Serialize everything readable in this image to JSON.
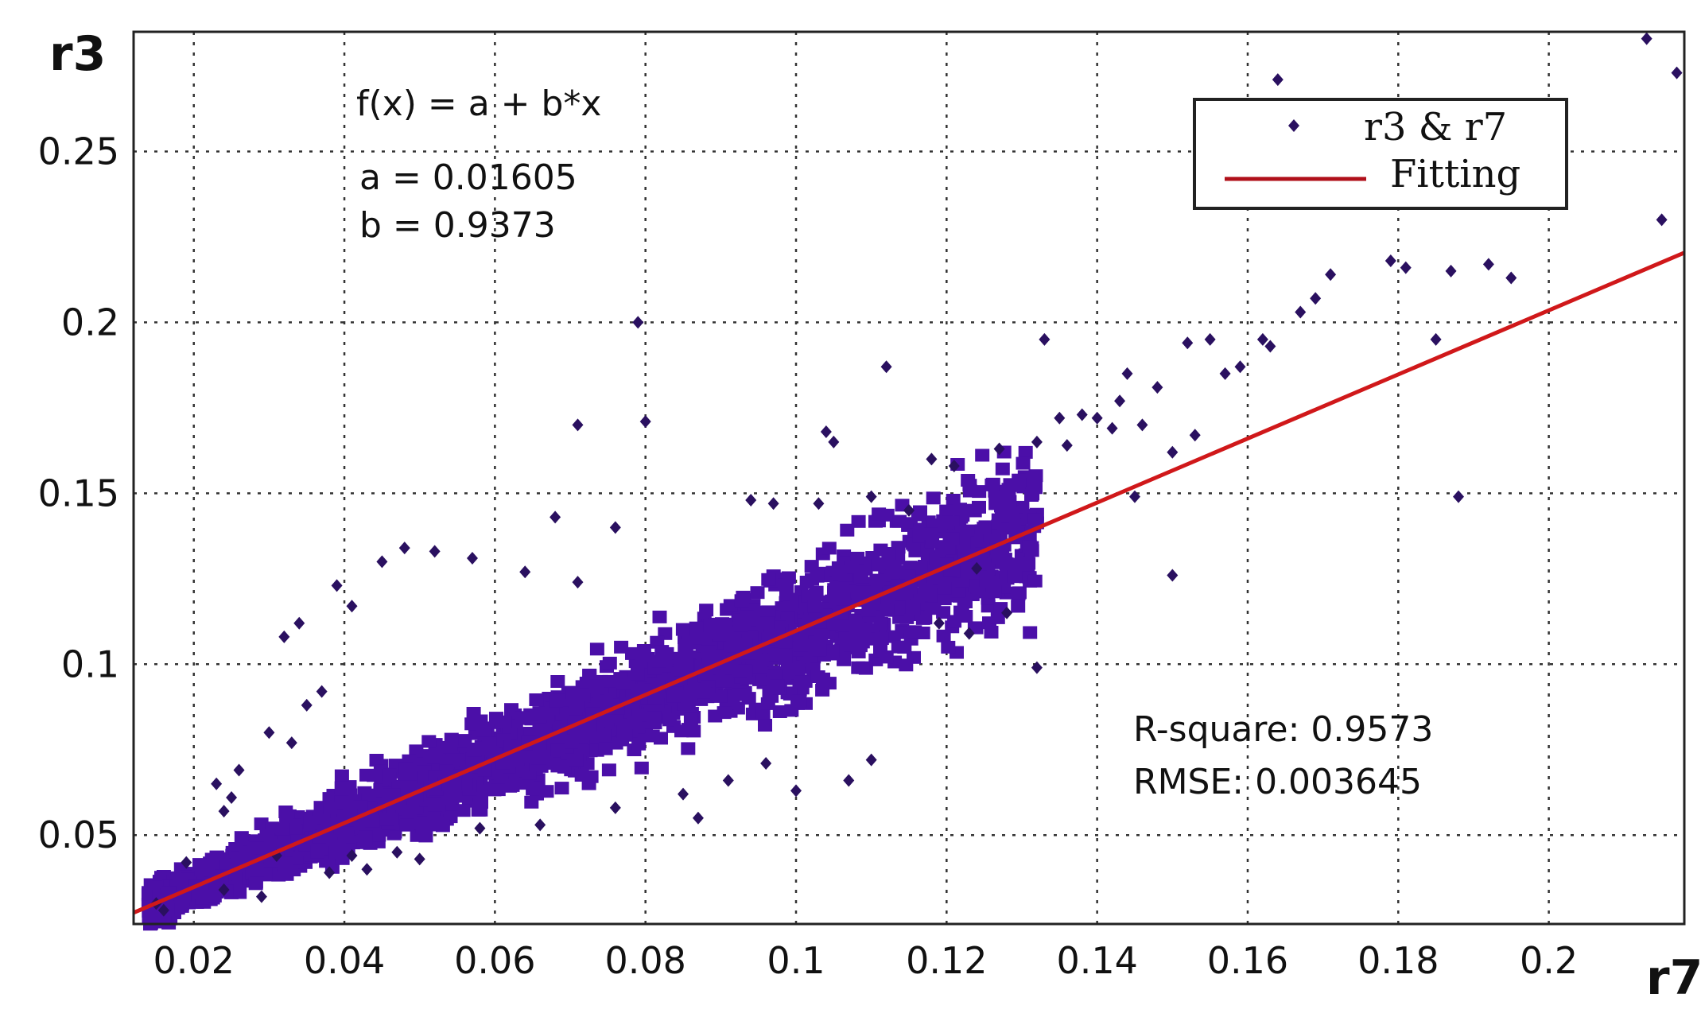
{
  "chart_data": {
    "type": "scatter",
    "xlabel": "r7",
    "ylabel": "r3",
    "xlim": [
      0.012,
      0.218
    ],
    "ylim": [
      0.024,
      0.285
    ],
    "xticks": [
      0.02,
      0.04,
      0.06,
      0.08,
      0.1,
      0.12,
      0.14,
      0.16,
      0.18,
      0.2
    ],
    "xtick_labels": [
      "0.02",
      "0.04",
      "0.06",
      "0.08",
      "0.1",
      "0.12",
      "0.14",
      "0.16",
      "0.18",
      "0.2"
    ],
    "yticks": [
      0.05,
      0.1,
      0.15,
      0.2,
      0.25
    ],
    "ytick_labels": [
      "0.05",
      "0.1",
      "0.15",
      "0.2",
      "0.25"
    ],
    "grid": true,
    "legend_position": "top-right",
    "series": [
      {
        "name": "r3 & r7",
        "kind": "scatter",
        "color": "#4b0fa8",
        "points": [
          [
            0.213,
            0.283
          ],
          [
            0.217,
            0.273
          ],
          [
            0.164,
            0.271
          ],
          [
            0.215,
            0.23
          ],
          [
            0.179,
            0.218
          ],
          [
            0.181,
            0.216
          ],
          [
            0.192,
            0.217
          ],
          [
            0.187,
            0.215
          ],
          [
            0.171,
            0.214
          ],
          [
            0.195,
            0.213
          ],
          [
            0.169,
            0.207
          ],
          [
            0.167,
            0.203
          ],
          [
            0.185,
            0.195
          ],
          [
            0.162,
            0.195
          ],
          [
            0.163,
            0.193
          ],
          [
            0.155,
            0.195
          ],
          [
            0.152,
            0.194
          ],
          [
            0.133,
            0.195
          ],
          [
            0.079,
            0.2
          ],
          [
            0.159,
            0.187
          ],
          [
            0.157,
            0.185
          ],
          [
            0.144,
            0.185
          ],
          [
            0.112,
            0.187
          ],
          [
            0.148,
            0.181
          ],
          [
            0.143,
            0.177
          ],
          [
            0.138,
            0.173
          ],
          [
            0.135,
            0.172
          ],
          [
            0.14,
            0.172
          ],
          [
            0.142,
            0.169
          ],
          [
            0.153,
            0.167
          ],
          [
            0.146,
            0.17
          ],
          [
            0.071,
            0.17
          ],
          [
            0.08,
            0.171
          ],
          [
            0.104,
            0.168
          ],
          [
            0.105,
            0.165
          ],
          [
            0.132,
            0.165
          ],
          [
            0.136,
            0.164
          ],
          [
            0.127,
            0.163
          ],
          [
            0.15,
            0.162
          ],
          [
            0.118,
            0.16
          ],
          [
            0.121,
            0.158
          ],
          [
            0.145,
            0.149
          ],
          [
            0.188,
            0.149
          ],
          [
            0.15,
            0.126
          ],
          [
            0.132,
            0.099
          ],
          [
            0.11,
            0.149
          ],
          [
            0.097,
            0.147
          ],
          [
            0.094,
            0.148
          ],
          [
            0.103,
            0.147
          ],
          [
            0.115,
            0.145
          ],
          [
            0.068,
            0.143
          ],
          [
            0.076,
            0.14
          ],
          [
            0.048,
            0.134
          ],
          [
            0.039,
            0.123
          ],
          [
            0.041,
            0.117
          ],
          [
            0.034,
            0.112
          ],
          [
            0.032,
            0.108
          ],
          [
            0.045,
            0.13
          ],
          [
            0.052,
            0.133
          ],
          [
            0.057,
            0.131
          ],
          [
            0.064,
            0.127
          ],
          [
            0.071,
            0.124
          ],
          [
            0.124,
            0.128
          ],
          [
            0.128,
            0.115
          ],
          [
            0.123,
            0.109
          ],
          [
            0.119,
            0.112
          ],
          [
            0.11,
            0.072
          ],
          [
            0.1,
            0.063
          ],
          [
            0.096,
            0.071
          ],
          [
            0.107,
            0.066
          ],
          [
            0.091,
            0.066
          ],
          [
            0.085,
            0.062
          ],
          [
            0.087,
            0.055
          ],
          [
            0.076,
            0.058
          ],
          [
            0.066,
            0.053
          ],
          [
            0.058,
            0.052
          ],
          [
            0.05,
            0.043
          ],
          [
            0.047,
            0.045
          ],
          [
            0.043,
            0.04
          ],
          [
            0.041,
            0.044
          ],
          [
            0.038,
            0.039
          ],
          [
            0.031,
            0.044
          ],
          [
            0.029,
            0.032
          ],
          [
            0.025,
            0.061
          ],
          [
            0.023,
            0.065
          ],
          [
            0.026,
            0.069
          ],
          [
            0.024,
            0.057
          ],
          [
            0.035,
            0.088
          ],
          [
            0.033,
            0.077
          ],
          [
            0.03,
            0.08
          ],
          [
            0.037,
            0.092
          ],
          [
            0.015,
            0.03
          ],
          [
            0.016,
            0.028
          ],
          [
            0.019,
            0.042
          ],
          [
            0.024,
            0.034
          ]
        ]
      },
      {
        "name": "Fitting",
        "kind": "line",
        "color": "#d0181a",
        "a": 0.01605,
        "b": 0.9373
      }
    ],
    "annotations": {
      "equation": "f(x) = a + b*x",
      "a_text": "a = 0.01605",
      "b_text": "b = 0.9373",
      "rsquare_text": "R-square: 0.9573",
      "rmse_text": "RMSE: 0.003645"
    },
    "legend": {
      "entries": [
        "r3 & r7",
        "Fitting"
      ]
    }
  }
}
